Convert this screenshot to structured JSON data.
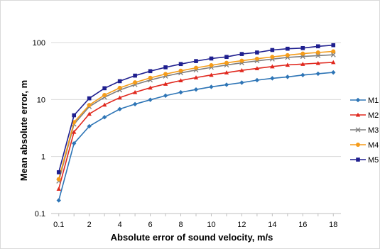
{
  "chart_data": {
    "type": "line",
    "xlabel": "Absolute error of sound velocity, m/s",
    "ylabel": "Mean absolute error, m",
    "y_scale": "log",
    "ylim": [
      0.1,
      100
    ],
    "y_ticks": [
      0.1,
      1,
      10,
      100
    ],
    "y_tick_labels": [
      "0.1",
      "1",
      "10",
      "100"
    ],
    "x": [
      0.1,
      1,
      2,
      3,
      4,
      5,
      6,
      7,
      8,
      9,
      10,
      11,
      12,
      13,
      14,
      15,
      16,
      17,
      18
    ],
    "x_tick_labels": [
      "0.1",
      "",
      "2",
      "",
      "4",
      "",
      "6",
      "",
      "8",
      "",
      "10",
      "",
      "12",
      "",
      "14",
      "",
      "16",
      "",
      "18"
    ],
    "grid": "horizontal major",
    "legend_position": "right",
    "series": [
      {
        "name": "M1",
        "color": "#2e75b6",
        "marker": "diamond",
        "values": [
          0.17,
          1.7,
          3.4,
          4.9,
          6.8,
          8.3,
          9.9,
          11.7,
          13.4,
          15.0,
          16.7,
          18.2,
          19.8,
          21.9,
          23.6,
          25.0,
          26.9,
          28.4,
          29.9
        ]
      },
      {
        "name": "M2",
        "color": "#e0281e",
        "marker": "triangle",
        "values": [
          0.27,
          2.7,
          5.6,
          8.1,
          10.8,
          13.4,
          16.1,
          18.8,
          21.6,
          24.3,
          27.0,
          29.7,
          32.5,
          35.2,
          38.0,
          40.5,
          42.0,
          43.5,
          45.0
        ]
      },
      {
        "name": "M3",
        "color": "#7f7f7f",
        "marker": "x",
        "values": [
          0.37,
          3.7,
          7.5,
          11.0,
          14.7,
          18.3,
          22.0,
          25.7,
          29.3,
          33.0,
          36.7,
          40.3,
          44.0,
          47.7,
          51.3,
          55.0,
          57.0,
          59.0,
          61.0
        ]
      },
      {
        "name": "M4",
        "color": "#f59c1a",
        "marker": "circle",
        "values": [
          0.4,
          4.0,
          8.0,
          12.0,
          16.0,
          20.0,
          24.0,
          28.0,
          32.0,
          36.0,
          40.0,
          44.0,
          48.0,
          52.0,
          56.0,
          60.0,
          64.0,
          67.0,
          70.0
        ]
      },
      {
        "name": "M5",
        "color": "#1f1f8f",
        "marker": "square",
        "values": [
          0.53,
          5.3,
          10.5,
          15.8,
          21.0,
          26.3,
          31.5,
          36.8,
          42.0,
          47.3,
          52.5,
          56.0,
          63.0,
          67.0,
          74.0,
          78.0,
          80.0,
          86.0,
          90.0
        ]
      }
    ]
  }
}
